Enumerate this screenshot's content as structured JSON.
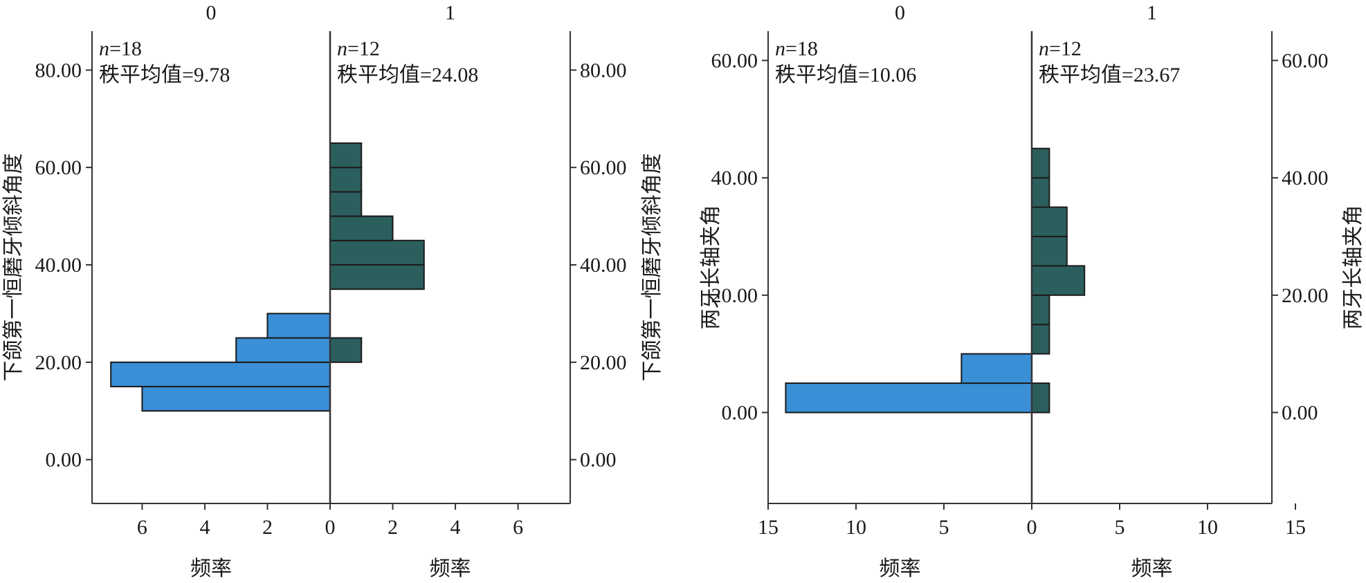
{
  "chart_data": [
    {
      "type": "population-pyramid-histogram",
      "groups": [
        "0",
        "1"
      ],
      "annotations": [
        {
          "n_label": "n",
          "n_value": "=18",
          "rank_mean": "秩平均值=9.78"
        },
        {
          "n_label": "n",
          "n_value": "=12",
          "rank_mean": "秩平均值=24.08"
        }
      ],
      "ylabel": "下颌第一恒磨牙倾斜角度",
      "xlabel": "频率",
      "ylim": [
        -9,
        88
      ],
      "yticks": [
        0,
        20,
        40,
        60,
        80
      ],
      "ytick_labels": [
        "0.00",
        "20.00",
        "40.00",
        "60.00",
        "80.00"
      ],
      "xmax": 7.6,
      "xticks": [
        0,
        2,
        4,
        6
      ],
      "xtick_labels": [
        "0",
        "2",
        "4",
        "6"
      ],
      "bin_width": 5,
      "bins": [
        {
          "y0": 10,
          "y1": 15,
          "group0": 6,
          "group1": 0
        },
        {
          "y0": 15,
          "y1": 20,
          "group0": 7,
          "group1": 0
        },
        {
          "y0": 20,
          "y1": 25,
          "group0": 3,
          "group1": 1
        },
        {
          "y0": 25,
          "y1": 30,
          "group0": 2,
          "group1": 0
        },
        {
          "y0": 35,
          "y1": 40,
          "group0": 0,
          "group1": 3
        },
        {
          "y0": 40,
          "y1": 45,
          "group0": 0,
          "group1": 3
        },
        {
          "y0": 45,
          "y1": 50,
          "group0": 0,
          "group1": 2
        },
        {
          "y0": 50,
          "y1": 55,
          "group0": 0,
          "group1": 1
        },
        {
          "y0": 55,
          "y1": 60,
          "group0": 0,
          "group1": 1
        },
        {
          "y0": 60,
          "y1": 65,
          "group0": 0,
          "group1": 1
        }
      ]
    },
    {
      "type": "population-pyramid-histogram",
      "groups": [
        "0",
        "1"
      ],
      "annotations": [
        {
          "n_label": "n",
          "n_value": "=18",
          "rank_mean": "秩平均值=10.06"
        },
        {
          "n_label": "n",
          "n_value": "=12",
          "rank_mean": "秩平均值=23.67"
        }
      ],
      "ylabel": "两牙长轴夹角",
      "xlabel": "频率",
      "ylim": [
        -15.5,
        65
      ],
      "yticks": [
        0,
        20,
        40,
        60
      ],
      "ytick_labels": [
        "0.00",
        "20.00",
        "40.00",
        "60.00"
      ],
      "xmax": 15,
      "xticks": [
        0,
        5,
        10,
        15
      ],
      "xtick_labels": [
        "0",
        "5",
        "10",
        "15"
      ],
      "bin_width": 5,
      "bins": [
        {
          "y0": 0,
          "y1": 5,
          "group0": 14,
          "group1": 1
        },
        {
          "y0": 5,
          "y1": 10,
          "group0": 4,
          "group1": 0
        },
        {
          "y0": 10,
          "y1": 15,
          "group0": 0,
          "group1": 1
        },
        {
          "y0": 15,
          "y1": 20,
          "group0": 0,
          "group1": 1
        },
        {
          "y0": 20,
          "y1": 25,
          "group0": 0,
          "group1": 3
        },
        {
          "y0": 25,
          "y1": 30,
          "group0": 0,
          "group1": 2
        },
        {
          "y0": 30,
          "y1": 35,
          "group0": 0,
          "group1": 2
        },
        {
          "y0": 35,
          "y1": 40,
          "group0": 0,
          "group1": 1
        },
        {
          "y0": 40,
          "y1": 45,
          "group0": 0,
          "group1": 1
        }
      ]
    }
  ],
  "colors": {
    "group0_fill": "#3a8fd6",
    "group1_fill": "#2b5f5e",
    "stroke": "#1a1a1a",
    "axis": "#333333"
  }
}
